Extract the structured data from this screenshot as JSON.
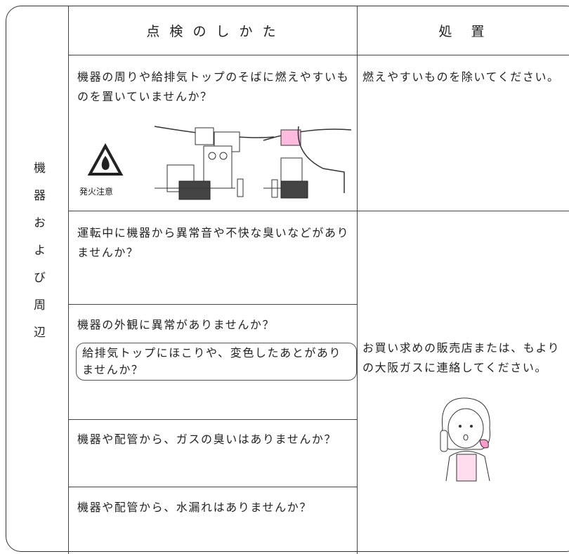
{
  "header": {
    "check": "点 検 の し か た",
    "action": "処　置"
  },
  "side_label": "機器および周辺",
  "rows": [
    {
      "check": "機器の周りや給排気トップのそばに燃えやすいものを置いていませんか？",
      "warning_label": "発火注意",
      "action": "燃えやすいものを除いてください。"
    },
    {
      "check": "運転中に機器から異常音や不快な臭いなどがありませんか？"
    },
    {
      "check": "機器の外観に異常がありませんか？",
      "note": "給排気トップにほこりや、変色したあとがありませんか？"
    },
    {
      "check": "機器や配管から、ガスの臭いはありませんか？"
    },
    {
      "check": "機器や配管から、水漏れはありませんか？"
    }
  ],
  "shared_action": "お買い求めの販売店または、もよりの大阪ガスに連絡してください。"
}
